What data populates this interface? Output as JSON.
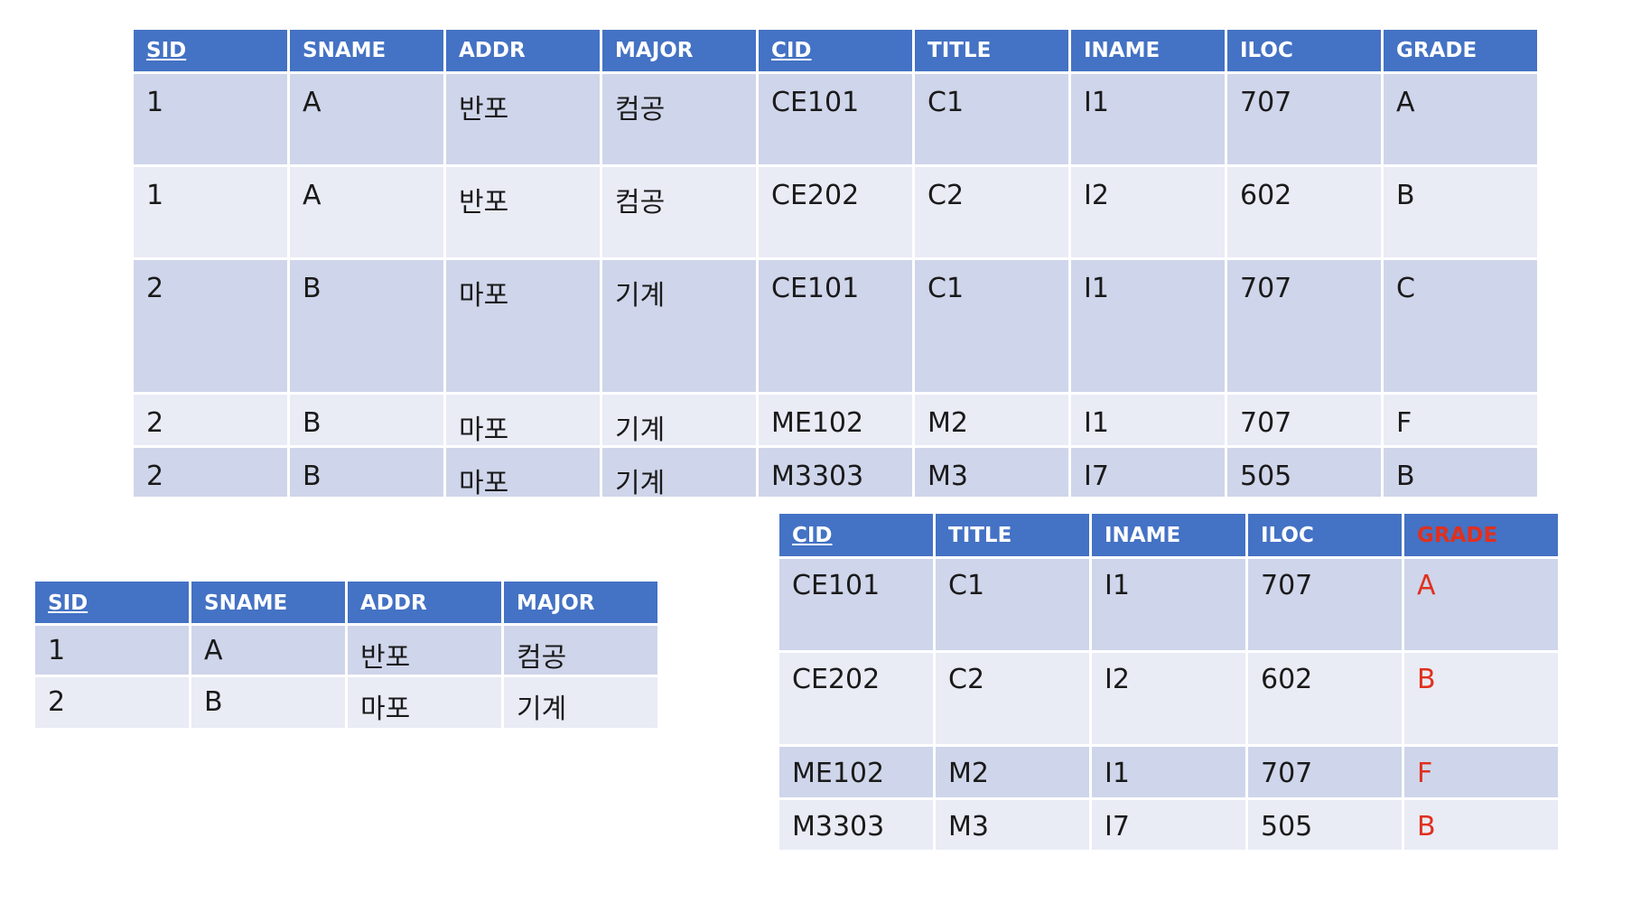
{
  "colors": {
    "header_blue": "#4472C4",
    "row_dark": "#CFD5EA",
    "row_light": "#E9EBF5",
    "accent_red": "#E0301E"
  },
  "table_enrollment": {
    "headers": [
      "SID",
      "SNAME",
      "ADDR",
      "MAJOR",
      "CID",
      "TITLE",
      "INAME",
      "ILOC",
      "GRADE"
    ],
    "rows": [
      [
        "1",
        "A",
        "반포",
        "컴공",
        "CE101",
        "C1",
        "I1",
        "707",
        "A"
      ],
      [
        "1",
        "A",
        "반포",
        "컴공",
        "CE202",
        "C2",
        "I2",
        "602",
        "B"
      ],
      [
        "2",
        "B",
        "마포",
        "기계",
        "CE101",
        "C1",
        "I1",
        "707",
        "C"
      ],
      [
        "2",
        "B",
        "마포",
        "기계",
        "ME102",
        "M2",
        "I1",
        "707",
        "F"
      ],
      [
        "2",
        "B",
        "마포",
        "기계",
        "M3303",
        "M3",
        "I7",
        "505",
        "B"
      ]
    ]
  },
  "table_student": {
    "headers": [
      "SID",
      "SNAME",
      "ADDR",
      "MAJOR"
    ],
    "rows": [
      [
        "1",
        "A",
        "반포",
        "컴공"
      ],
      [
        "2",
        "B",
        "마포",
        "기계"
      ]
    ]
  },
  "table_course": {
    "headers": [
      "CID",
      "TITLE",
      "INAME",
      "ILOC",
      "GRADE"
    ],
    "rows": [
      [
        "CE101",
        "C1",
        "I1",
        "707",
        "A"
      ],
      [
        "CE202",
        "C2",
        "I2",
        "602",
        "B"
      ],
      [
        "ME102",
        "M2",
        "I1",
        "707",
        "F"
      ],
      [
        "M3303",
        "M3",
        "I7",
        "505",
        "B"
      ]
    ]
  }
}
